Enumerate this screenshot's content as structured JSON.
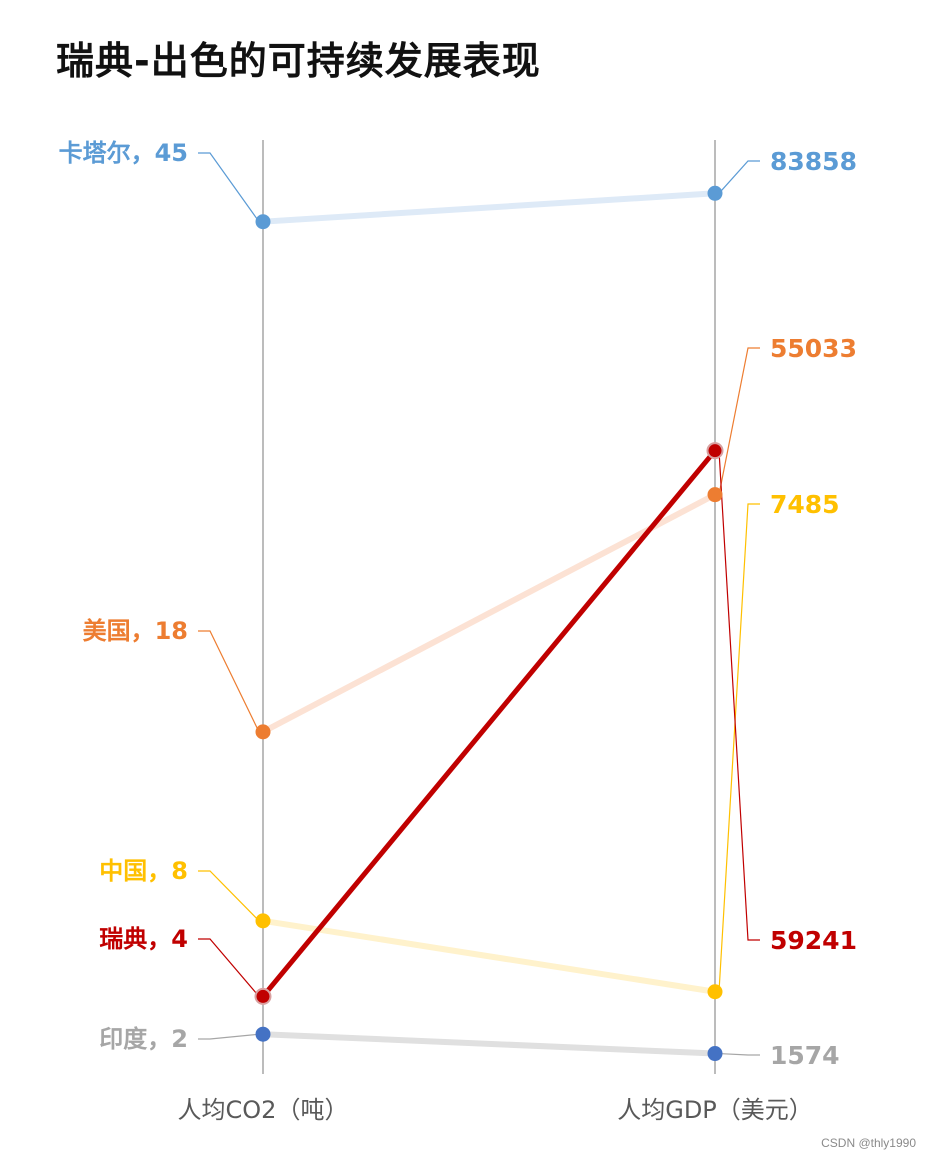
{
  "chart_data": {
    "type": "line",
    "subtype": "slope",
    "title": "瑞典-出色的可持续发展表现",
    "axes": [
      "人均CO2（吨）",
      "人均GDP（美元）"
    ],
    "series": [
      {
        "name": "卡塔尔",
        "values": [
          45,
          83858
        ],
        "left_label": "卡塔尔，45",
        "right_label": "83858",
        "color": "#5b9bd5",
        "line_color": "#deeaf7",
        "highlight": false
      },
      {
        "name": "美国",
        "values": [
          18,
          55033
        ],
        "left_label": "美国，18",
        "right_label": "55033",
        "color": "#ed7d31",
        "line_color": "#fce2d4",
        "highlight": false
      },
      {
        "name": "中国",
        "values": [
          8,
          7485
        ],
        "left_label": "中国，8",
        "right_label": "7485",
        "color": "#ffc000",
        "line_color": "#fff2cc",
        "highlight": false
      },
      {
        "name": "瑞典",
        "values": [
          4,
          59241
        ],
        "left_label": "瑞典，4",
        "right_label": "59241",
        "color": "#c00000",
        "line_color": "#c00000",
        "highlight": true
      },
      {
        "name": "印度",
        "values": [
          2,
          1574
        ],
        "left_label": "印度，2",
        "right_label": "1574",
        "color": "#4472c4",
        "label_color": "#a6a6a6",
        "line_color": "#e0e0e0",
        "highlight": false
      }
    ]
  },
  "watermark": "CSDN @thly1990"
}
